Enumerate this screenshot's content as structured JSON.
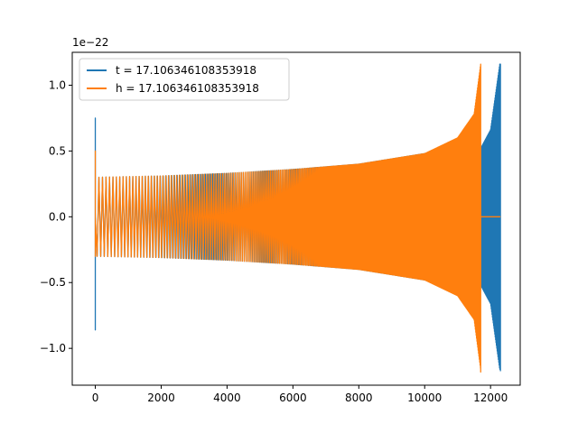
{
  "chart_data": {
    "type": "line",
    "title": "",
    "xlabel": "",
    "ylabel": "",
    "y_offset_label": "1e−22",
    "xlim": [
      -700,
      12900
    ],
    "ylim": [
      -1.28,
      1.25
    ],
    "x_ticks": [
      0,
      2000,
      4000,
      6000,
      8000,
      10000,
      12000
    ],
    "x_tick_labels": [
      "0",
      "2000",
      "4000",
      "6000",
      "8000",
      "10000",
      "12000"
    ],
    "y_ticks": [
      -1.0,
      -0.5,
      0.0,
      0.5,
      1.0
    ],
    "y_tick_labels": [
      "−1.0",
      "−0.5",
      "0.0",
      "0.5",
      "1.0"
    ],
    "grid": false,
    "legend_position": "top-left",
    "series": [
      {
        "name": "t = 17.106346108353918",
        "color": "#1f77b4",
        "description_points": {
          "initial_spike": {
            "x": 0,
            "ymax": 0.75,
            "ymin": -0.86
          },
          "x_end": 12300,
          "peak": {
            "x": 12280,
            "ymax": 1.16,
            "ymin": -1.17
          },
          "envelope": [
            [
              0,
              0.3
            ],
            [
              2000,
              0.31
            ],
            [
              4000,
              0.33
            ],
            [
              6000,
              0.36
            ],
            [
              8000,
              0.4
            ],
            [
              10000,
              0.48
            ],
            [
              11000,
              0.56
            ],
            [
              11700,
              0.52
            ],
            [
              12000,
              0.66
            ],
            [
              12280,
              1.16
            ]
          ]
        }
      },
      {
        "name": "h = 17.106346108353918",
        "color": "#ff7f0e",
        "description_points": {
          "initial_spike": {
            "x": 0,
            "ymax": 0.5,
            "ymin": -0.3
          },
          "x_end": 11700,
          "peak": {
            "x": 11700,
            "ymax": 1.16,
            "ymin": -1.18
          },
          "flat_after": [
            11700,
            12300
          ],
          "envelope": [
            [
              0,
              0.3
            ],
            [
              2000,
              0.31
            ],
            [
              4000,
              0.33
            ],
            [
              6000,
              0.36
            ],
            [
              8000,
              0.4
            ],
            [
              10000,
              0.48
            ],
            [
              11000,
              0.6
            ],
            [
              11500,
              0.78
            ],
            [
              11700,
              1.16
            ]
          ]
        }
      }
    ]
  }
}
